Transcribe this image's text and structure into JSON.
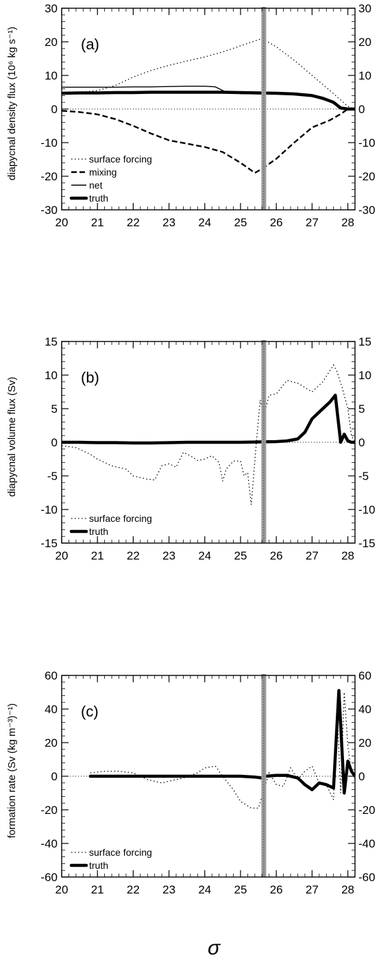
{
  "figure": {
    "xlabel": "σ"
  },
  "chart_data": [
    {
      "type": "line",
      "panel_label": "(a)",
      "ylabel": "diapycnal density flux (10⁶ kg s⁻¹)",
      "xlim": [
        20,
        28.2
      ],
      "ylim": [
        -30,
        30
      ],
      "yticks": [
        -30,
        -20,
        -10,
        0,
        10,
        20,
        30
      ],
      "xticks": [
        20,
        21,
        22,
        23,
        24,
        25,
        26,
        27,
        28
      ],
      "x_minor_step": 0.2,
      "y_minor_step": 2,
      "vline": 25.65,
      "zero_line": true,
      "legend_position": "bottom-left",
      "series": [
        {
          "name": "surface forcing",
          "style": "dotted",
          "x": [
            20.0,
            20.5,
            21.0,
            21.5,
            22.0,
            22.5,
            23.0,
            23.5,
            24.0,
            24.5,
            25.0,
            25.6,
            26.0,
            26.5,
            27.0,
            27.5,
            28.0,
            28.2
          ],
          "y": [
            4.8,
            5.0,
            5.5,
            7.0,
            9.5,
            11.5,
            13.0,
            14.3,
            15.5,
            17.0,
            18.8,
            21.0,
            18.5,
            14.5,
            10.0,
            5.5,
            0.8,
            0
          ]
        },
        {
          "name": "mixing",
          "style": "dashed",
          "x": [
            20.0,
            20.5,
            21.0,
            21.5,
            22.0,
            22.5,
            23.0,
            23.5,
            24.0,
            24.5,
            25.0,
            25.4,
            25.6,
            26.0,
            26.5,
            27.0,
            27.5,
            27.8,
            28.0,
            28.2
          ],
          "y": [
            -0.5,
            -0.9,
            -1.6,
            -3.0,
            -5.0,
            -7.3,
            -9.3,
            -10.3,
            -11.3,
            -12.8,
            -16.0,
            -19.0,
            -17.8,
            -14.8,
            -10.0,
            -5.5,
            -3.3,
            -1.5,
            0,
            0
          ]
        },
        {
          "name": "net",
          "style": "solid",
          "x": [
            20.0,
            20.5,
            21.0,
            21.5,
            22.0,
            22.5,
            23.0,
            23.5,
            24.0,
            24.3,
            24.6,
            25.0,
            25.6,
            26.0,
            26.5,
            27.0,
            27.5,
            27.8,
            28.0,
            28.2
          ],
          "y": [
            6.5,
            6.5,
            6.5,
            6.5,
            6.6,
            6.6,
            6.7,
            6.8,
            6.8,
            6.6,
            5.0,
            4.6,
            4.5,
            4.5,
            4.4,
            3.8,
            2.2,
            0.3,
            0,
            0
          ]
        },
        {
          "name": "truth",
          "style": "thick",
          "x": [
            20.0,
            20.5,
            21.0,
            21.5,
            22.0,
            22.5,
            23.0,
            23.5,
            24.0,
            24.5,
            25.0,
            25.5,
            26.0,
            26.5,
            27.0,
            27.3,
            27.6,
            27.8,
            28.0,
            28.2
          ],
          "y": [
            4.7,
            4.8,
            4.8,
            4.9,
            4.9,
            5.0,
            5.0,
            5.0,
            5.0,
            5.0,
            4.9,
            4.8,
            4.7,
            4.5,
            4.0,
            3.2,
            2.0,
            0.3,
            0,
            0
          ]
        }
      ]
    },
    {
      "type": "line",
      "panel_label": "(b)",
      "ylabel": "diapycnal volume flux (Sv)",
      "xlim": [
        20,
        28.2
      ],
      "ylim": [
        -15,
        15
      ],
      "yticks": [
        -15,
        -10,
        -5,
        0,
        5,
        10,
        15
      ],
      "xticks": [
        20,
        21,
        22,
        23,
        24,
        25,
        26,
        27,
        28
      ],
      "x_minor_step": 0.2,
      "y_minor_step": 1,
      "vline": 25.65,
      "zero_line": true,
      "legend_position": "bottom-left",
      "series": [
        {
          "name": "surface forcing",
          "style": "dotted",
          "x": [
            20.0,
            20.4,
            20.8,
            21.0,
            21.4,
            21.8,
            22.0,
            22.4,
            22.6,
            22.8,
            23.0,
            23.2,
            23.4,
            23.6,
            23.8,
            24.0,
            24.2,
            24.4,
            24.5,
            24.6,
            24.8,
            25.0,
            25.1,
            25.2,
            25.3,
            25.45,
            25.55,
            25.65,
            25.8,
            26.0,
            26.3,
            26.6,
            27.0,
            27.3,
            27.6,
            27.7,
            27.85,
            28.0,
            28.1,
            28.2
          ],
          "y": [
            -0.5,
            -0.8,
            -1.8,
            -2.5,
            -3.5,
            -4.0,
            -5.0,
            -5.5,
            -5.6,
            -3.5,
            -3.2,
            -3.7,
            -1.5,
            -2.0,
            -2.7,
            -2.5,
            -2.0,
            -3.0,
            -5.8,
            -4.0,
            -2.8,
            -2.8,
            -5.0,
            -4.5,
            -9.3,
            0.5,
            6.3,
            4.0,
            7.0,
            7.2,
            9.2,
            8.8,
            7.5,
            9.0,
            11.5,
            10.5,
            8.0,
            5.0,
            1.0,
            0
          ]
        },
        {
          "name": "truth",
          "style": "thick",
          "x": [
            20.0,
            20.5,
            21.0,
            21.5,
            22.0,
            22.5,
            23.0,
            23.5,
            24.0,
            24.5,
            25.0,
            25.5,
            26.0,
            26.3,
            26.6,
            26.8,
            27.0,
            27.3,
            27.5,
            27.65,
            27.8,
            27.9,
            28.0,
            28.1,
            28.2
          ],
          "y": [
            0,
            0,
            -0.05,
            -0.05,
            -0.1,
            -0.1,
            -0.05,
            0,
            0,
            0,
            0,
            0.05,
            0.1,
            0.2,
            0.5,
            1.5,
            3.5,
            5.0,
            6.0,
            7.0,
            0,
            1.2,
            0.2,
            0,
            0
          ]
        }
      ]
    },
    {
      "type": "line",
      "panel_label": "(c)",
      "ylabel": "formation rate (Sv (kg m⁻³)⁻¹)",
      "xlim": [
        20,
        28.2
      ],
      "ylim": [
        -60,
        60
      ],
      "yticks": [
        -60,
        -40,
        -20,
        0,
        20,
        40,
        60
      ],
      "xticks": [
        20,
        21,
        22,
        23,
        24,
        25,
        26,
        27,
        28
      ],
      "x_minor_step": 0.2,
      "y_minor_step": 4,
      "vline": 25.65,
      "zero_line": true,
      "legend_position": "bottom-left",
      "series": [
        {
          "name": "surface forcing",
          "style": "dotted",
          "x": [
            20.8,
            21.2,
            21.6,
            22.0,
            22.4,
            22.8,
            23.0,
            23.4,
            23.8,
            24.0,
            24.3,
            24.5,
            24.8,
            25.0,
            25.3,
            25.5,
            25.6,
            25.8,
            26.0,
            26.2,
            26.4,
            26.6,
            26.8,
            27.0,
            27.2,
            27.4,
            27.6,
            27.7,
            27.8,
            27.9,
            28.0,
            28.1,
            28.2
          ],
          "y": [
            2.0,
            3.0,
            3.0,
            2.0,
            -2.0,
            -4.0,
            -3.0,
            -1.0,
            2.0,
            5.0,
            6.0,
            0,
            -8.0,
            -15.0,
            -19.0,
            -19.0,
            -12.0,
            2.0,
            -5.0,
            -6.0,
            5.0,
            -2.0,
            3.0,
            6.0,
            -4.0,
            -5.0,
            -14.0,
            40.0,
            -10.0,
            50.0,
            18.0,
            2.0,
            0
          ]
        },
        {
          "name": "truth",
          "style": "thick",
          "x": [
            20.8,
            21.5,
            22.0,
            22.5,
            23.0,
            23.5,
            24.0,
            24.5,
            25.0,
            25.4,
            25.6,
            25.7,
            26.0,
            26.3,
            26.6,
            26.8,
            27.0,
            27.2,
            27.4,
            27.6,
            27.75,
            27.9,
            28.0,
            28.1,
            28.2
          ],
          "y": [
            0,
            0,
            0,
            0,
            0,
            0,
            0,
            0,
            0,
            -0.5,
            -1.0,
            0,
            0.5,
            0.5,
            -1.0,
            -5.0,
            -8.0,
            -4.0,
            -5.0,
            -7.0,
            51.0,
            -10.0,
            9.0,
            3.0,
            0
          ]
        }
      ]
    }
  ]
}
